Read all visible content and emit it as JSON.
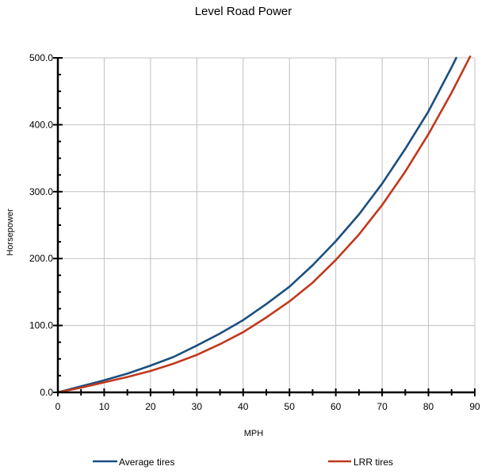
{
  "chart_data": {
    "type": "line",
    "title": "Level Road Power",
    "xlabel": "MPH",
    "ylabel": "Horsepower",
    "xlim": [
      0,
      90
    ],
    "ylim": [
      0,
      500
    ],
    "x_ticks": [
      0,
      10,
      20,
      30,
      40,
      50,
      60,
      70,
      80,
      90
    ],
    "x_tick_labels": [
      "0",
      "10",
      "20",
      "30",
      "40",
      "50",
      "60",
      "70",
      "80",
      "90"
    ],
    "y_ticks": [
      0,
      100,
      200,
      300,
      400,
      500
    ],
    "y_tick_labels": [
      "0.0",
      "100.0",
      "200.0",
      "300.0",
      "400.0",
      "500.0"
    ],
    "x_minor_ticks": [
      5,
      15,
      25,
      35,
      45,
      55,
      65,
      75,
      85
    ],
    "y_minor_ticks": [
      25,
      50,
      75,
      125,
      150,
      175,
      225,
      250,
      275,
      325,
      350,
      375,
      425,
      450,
      475
    ],
    "grid": true,
    "legend_position": "bottom",
    "series": [
      {
        "name": "Average tires",
        "color": "#1b4f80",
        "x": [
          0,
          5,
          10,
          15,
          20,
          25,
          30,
          35,
          40,
          45,
          50,
          55,
          60,
          65,
          70,
          75,
          80,
          85,
          86
        ],
        "y": [
          0,
          9,
          18,
          28,
          40,
          53,
          70,
          88,
          108,
          132,
          158,
          190,
          226,
          266,
          312,
          364,
          420,
          486,
          500
        ]
      },
      {
        "name": "LRR tires",
        "color": "#c0391c",
        "x": [
          0,
          5,
          10,
          15,
          20,
          25,
          30,
          35,
          40,
          45,
          50,
          55,
          60,
          65,
          70,
          75,
          80,
          85,
          89
        ],
        "y": [
          0,
          7,
          15,
          23,
          32,
          43,
          56,
          72,
          90,
          112,
          136,
          164,
          198,
          236,
          280,
          330,
          386,
          448,
          502
        ]
      }
    ]
  }
}
